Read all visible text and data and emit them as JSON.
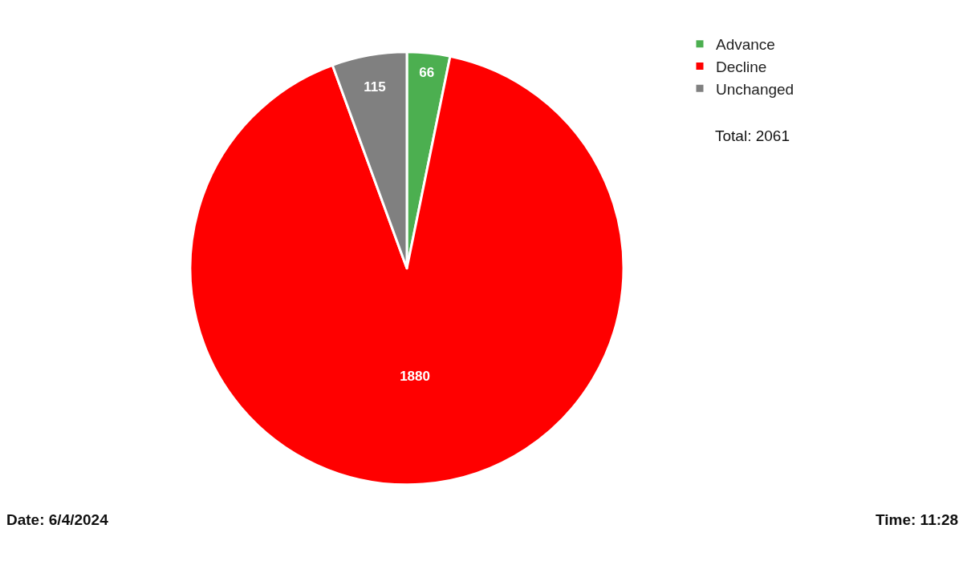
{
  "chart_data": {
    "type": "pie",
    "categories": [
      "Advance",
      "Decline",
      "Unchanged"
    ],
    "values": [
      66,
      1880,
      115
    ],
    "colors": [
      "#4caf50",
      "#ff0000",
      "#808080"
    ],
    "data_labels": true,
    "legend": "top right",
    "annotations": [
      "Total: 2061",
      "Date: 6/4/2024",
      "Time: 11:28"
    ]
  }
}
